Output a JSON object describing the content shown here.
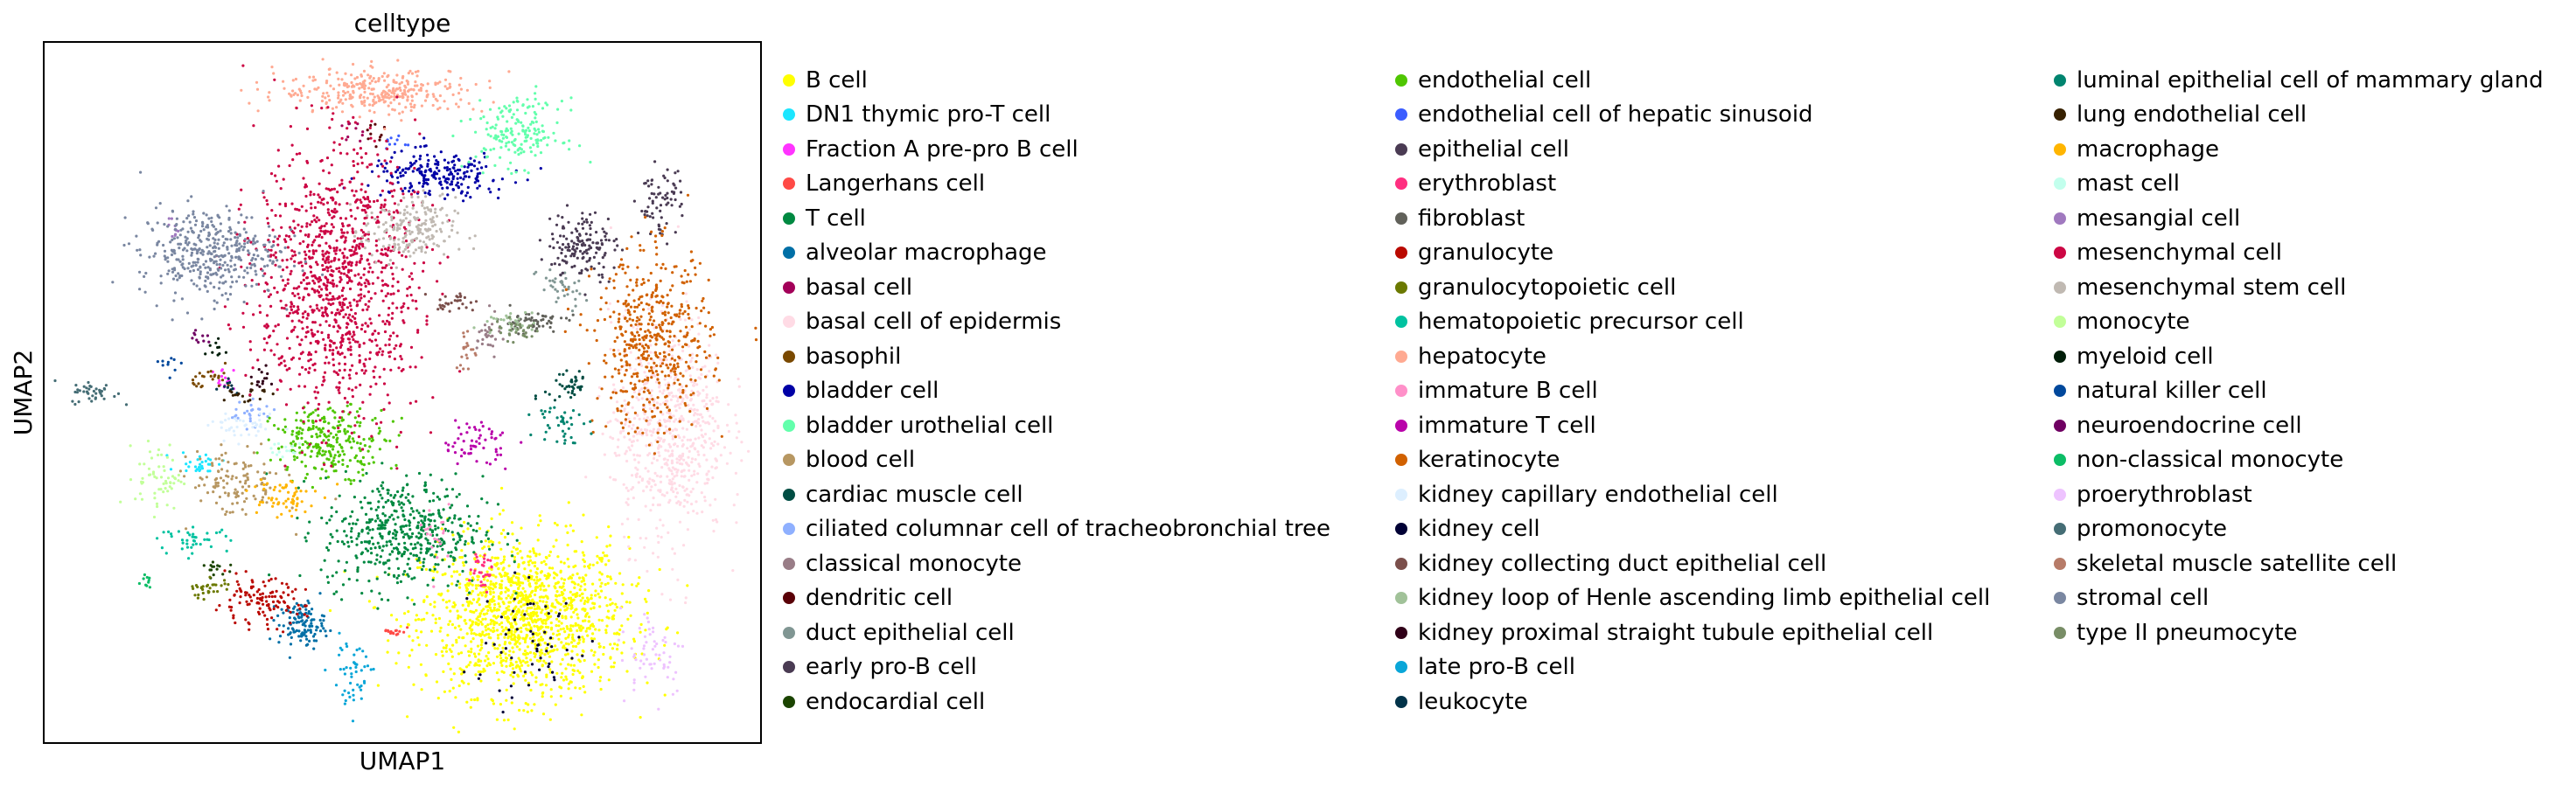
{
  "chart_data": {
    "type": "scatter",
    "title": "celltype",
    "xlabel": "UMAP1",
    "ylabel": "UMAP2",
    "grid": false,
    "legend_placement": "right, outside plot, three columns",
    "xlim": [
      0,
      100
    ],
    "ylim": [
      0,
      100
    ],
    "clusters": [
      {
        "name": "B cell",
        "color": "#ffff00",
        "center": [
          67,
          18
        ],
        "spread": [
          9,
          7
        ],
        "count": 1400
      },
      {
        "name": "DN1 thymic pro-T cell",
        "color": "#1ce6ff",
        "center": [
          22,
          40
        ],
        "spread": [
          2,
          1
        ],
        "count": 30
      },
      {
        "name": "Fraction A pre-pro B cell",
        "color": "#ff34ff",
        "center": [
          25,
          52
        ],
        "spread": [
          1,
          1
        ],
        "count": 15
      },
      {
        "name": "Langerhans cell",
        "color": "#ff4a46",
        "center": [
          49,
          16
        ],
        "spread": [
          1,
          0.5
        ],
        "count": 15
      },
      {
        "name": "T cell",
        "color": "#008941",
        "center": [
          50,
          30
        ],
        "spread": [
          7,
          5
        ],
        "count": 500
      },
      {
        "name": "alveolar macrophage",
        "color": "#006fa6",
        "center": [
          36,
          17
        ],
        "spread": [
          2,
          2
        ],
        "count": 120
      },
      {
        "name": "basal cell",
        "color": "#a30059",
        "center": [
          43,
          87
        ],
        "spread": [
          1,
          1
        ],
        "count": 10
      },
      {
        "name": "basal cell of epidermis",
        "color": "#ffdbe5",
        "center": [
          87,
          45
        ],
        "spread": [
          5,
          10
        ],
        "count": 700
      },
      {
        "name": "basophil",
        "color": "#7a4900",
        "center": [
          24,
          52
        ],
        "spread": [
          2,
          1
        ],
        "count": 25
      },
      {
        "name": "bladder cell",
        "color": "#0000a6",
        "center": [
          55,
          81
        ],
        "spread": [
          6,
          2
        ],
        "count": 220
      },
      {
        "name": "bladder urothelial cell",
        "color": "#63ffac",
        "center": [
          66,
          87
        ],
        "spread": [
          4,
          3
        ],
        "count": 180
      },
      {
        "name": "blood cell",
        "color": "#b79762",
        "center": [
          27,
          37
        ],
        "spread": [
          4,
          3
        ],
        "count": 120
      },
      {
        "name": "cardiac muscle cell",
        "color": "#004d43",
        "center": [
          73,
          51
        ],
        "spread": [
          2,
          2
        ],
        "count": 40
      },
      {
        "name": "ciliated columnar cell of tracheobronchial tree",
        "color": "#8fb0ff",
        "center": [
          29,
          47
        ],
        "spread": [
          2,
          1
        ],
        "count": 25
      },
      {
        "name": "classical monocyte",
        "color": "#997d87",
        "center": [
          62,
          58
        ],
        "spread": [
          1,
          2
        ],
        "count": 30
      },
      {
        "name": "dendritic cell",
        "color": "#5a0007",
        "center": [
          46,
          87
        ],
        "spread": [
          1,
          1
        ],
        "count": 10
      },
      {
        "name": "duct epithelial cell",
        "color": "#809693",
        "center": [
          72,
          65
        ],
        "spread": [
          2,
          2
        ],
        "count": 40
      },
      {
        "name": "early pro-B cell",
        "color": "#4a3b53",
        "center": [
          86,
          77
        ],
        "spread": [
          2,
          3
        ],
        "count": 70
      },
      {
        "name": "endocardial cell",
        "color": "#1b4400",
        "center": [
          24,
          25
        ],
        "spread": [
          1,
          1
        ],
        "count": 15
      },
      {
        "name": "endothelial cell",
        "color": "#4fc601",
        "center": [
          40,
          43
        ],
        "spread": [
          5,
          3
        ],
        "count": 260
      },
      {
        "name": "endothelial cell of hepatic sinusoid",
        "color": "#3b5dff",
        "center": [
          49,
          86
        ],
        "spread": [
          1,
          1
        ],
        "count": 10
      },
      {
        "name": "epithelial cell",
        "color": "#4a3b53",
        "center": [
          75,
          71
        ],
        "spread": [
          3,
          3
        ],
        "count": 150
      },
      {
        "name": "erythroblast",
        "color": "#ff2f80",
        "center": [
          61,
          25
        ],
        "spread": [
          1,
          2
        ],
        "count": 30
      },
      {
        "name": "fibroblast",
        "color": "#61615a",
        "center": [
          68,
          60
        ],
        "spread": [
          3,
          1
        ],
        "count": 60
      },
      {
        "name": "granulocyte",
        "color": "#ba0900",
        "center": [
          30,
          20
        ],
        "spread": [
          4,
          2
        ],
        "count": 120
      },
      {
        "name": "granulocytopoietic cell",
        "color": "#6b7900",
        "center": [
          23,
          22
        ],
        "spread": [
          2,
          1
        ],
        "count": 30
      },
      {
        "name": "hematopoietic precursor cell",
        "color": "#00c2a0",
        "center": [
          21,
          29
        ],
        "spread": [
          3,
          1
        ],
        "count": 40
      },
      {
        "name": "hepatocyte",
        "color": "#ffaa92",
        "center": [
          47,
          93
        ],
        "spread": [
          9,
          2
        ],
        "count": 320
      },
      {
        "name": "immature B cell",
        "color": "#ff90c9",
        "center": [
          55,
          29
        ],
        "spread": [
          1,
          3
        ],
        "count": 20
      },
      {
        "name": "immature T cell",
        "color": "#b903aa",
        "center": [
          60,
          43
        ],
        "spread": [
          3,
          2
        ],
        "count": 60
      },
      {
        "name": "keratinocyte",
        "color": "#d16100",
        "center": [
          85,
          57
        ],
        "spread": [
          5,
          8
        ],
        "count": 500
      },
      {
        "name": "kidney capillary endothelial cell",
        "color": "#ddefff",
        "center": [
          28,
          45
        ],
        "spread": [
          3,
          1
        ],
        "count": 40
      },
      {
        "name": "kidney cell",
        "color": "#000035",
        "center": [
          68,
          14
        ],
        "spread": [
          6,
          5
        ],
        "count": 60
      },
      {
        "name": "kidney collecting duct epithelial cell",
        "color": "#7b4f4b",
        "center": [
          57,
          63
        ],
        "spread": [
          2,
          1
        ],
        "count": 30
      },
      {
        "name": "kidney loop of Henle ascending limb epithelial cell",
        "color": "#a1c299",
        "center": [
          65,
          60
        ],
        "spread": [
          2,
          1
        ],
        "count": 30
      },
      {
        "name": "kidney proximal straight tubule epithelial cell",
        "color": "#300018",
        "center": [
          30,
          52
        ],
        "spread": [
          1,
          1
        ],
        "count": 15
      },
      {
        "name": "late pro-B cell",
        "color": "#0aa6d8",
        "center": [
          43,
          10
        ],
        "spread": [
          2,
          3
        ],
        "count": 50
      },
      {
        "name": "leukocyte",
        "color": "#013349",
        "center": [
          26,
          51
        ],
        "spread": [
          1,
          1
        ],
        "count": 10
      },
      {
        "name": "luminal epithelial cell of mammary gland",
        "color": "#00846f",
        "center": [
          72,
          46
        ],
        "spread": [
          2,
          2
        ],
        "count": 40
      },
      {
        "name": "lung endothelial cell",
        "color": "#372101",
        "center": [
          28,
          50
        ],
        "spread": [
          2,
          1
        ],
        "count": 20
      },
      {
        "name": "macrophage",
        "color": "#ffb500",
        "center": [
          33,
          35
        ],
        "spread": [
          3,
          2
        ],
        "count": 60
      },
      {
        "name": "mast cell",
        "color": "#c2ffed",
        "center": [
          33,
          42
        ],
        "spread": [
          2,
          1
        ],
        "count": 15
      },
      {
        "name": "mesangial cell",
        "color": "#a079bf",
        "center": [
          18,
          73
        ],
        "spread": [
          1,
          1
        ],
        "count": 10
      },
      {
        "name": "mesenchymal cell",
        "color": "#cc0744",
        "center": [
          41,
          66
        ],
        "spread": [
          7,
          12
        ],
        "count": 1100
      },
      {
        "name": "mesenchymal stem cell",
        "color": "#c0b9b2",
        "center": [
          51,
          73
        ],
        "spread": [
          4,
          3
        ],
        "count": 200
      },
      {
        "name": "monocyte",
        "color": "#c2ff99",
        "center": [
          16,
          38
        ],
        "spread": [
          2,
          3
        ],
        "count": 60
      },
      {
        "name": "myeloid cell",
        "color": "#001e09",
        "center": [
          24,
          56
        ],
        "spread": [
          1,
          1
        ],
        "count": 10
      },
      {
        "name": "natural killer cell",
        "color": "#00489c",
        "center": [
          18,
          54
        ],
        "spread": [
          1,
          1
        ],
        "count": 10
      },
      {
        "name": "neuroendocrine cell",
        "color": "#6f0062",
        "center": [
          22,
          58
        ],
        "spread": [
          1,
          1
        ],
        "count": 10
      },
      {
        "name": "non-classical monocyte",
        "color": "#0cbd66",
        "center": [
          14,
          23
        ],
        "spread": [
          1,
          1
        ],
        "count": 10
      },
      {
        "name": "proerythroblast",
        "color": "#eec3ff",
        "center": [
          85,
          13
        ],
        "spread": [
          3,
          4
        ],
        "count": 60
      },
      {
        "name": "promonocyte",
        "color": "#456d75",
        "center": [
          7,
          50
        ],
        "spread": [
          2,
          1
        ],
        "count": 40
      },
      {
        "name": "skeletal muscle satellite cell",
        "color": "#b77b68",
        "center": [
          59,
          56
        ],
        "spread": [
          1,
          2
        ],
        "count": 20
      },
      {
        "name": "stromal cell",
        "color": "#7a87a1",
        "center": [
          23,
          70
        ],
        "spread": [
          6,
          4
        ],
        "count": 400
      },
      {
        "name": "type II pneumocyte",
        "color": "#788d66",
        "center": [
          66,
          59
        ],
        "spread": [
          2,
          1
        ],
        "count": 30
      }
    ]
  }
}
